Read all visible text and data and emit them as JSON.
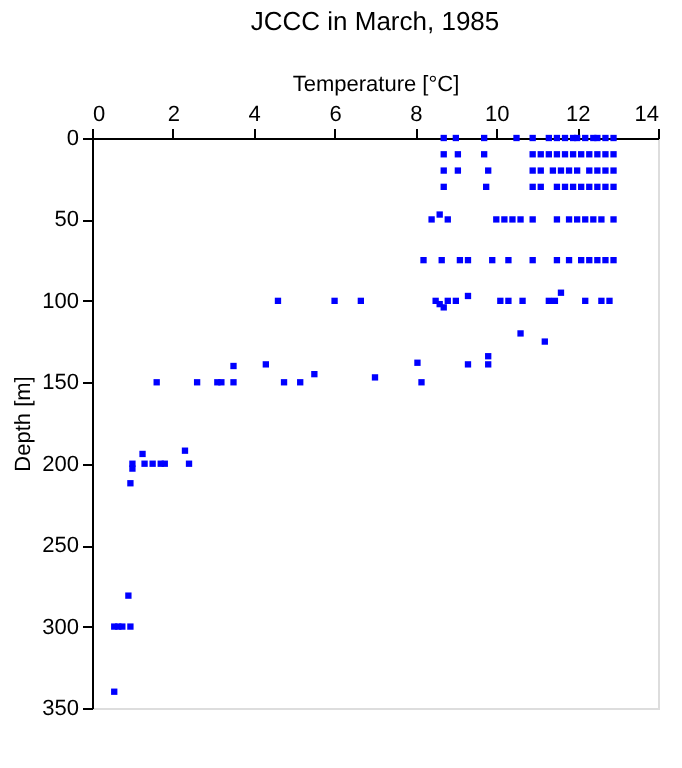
{
  "chart_data": {
    "type": "scatter",
    "title": "JCCC in March, 1985",
    "xlabel": "Temperature [°C]",
    "ylabel": "Depth [m]",
    "x": [
      8.7,
      9.0,
      9.7,
      10.5,
      10.9,
      11.3,
      11.5,
      11.7,
      11.9,
      12.0,
      12.2,
      12.4,
      12.5,
      12.7,
      12.9,
      8.7,
      9.05,
      9.7,
      10.9,
      11.1,
      11.3,
      11.5,
      11.7,
      11.9,
      12.1,
      12.3,
      12.5,
      12.7,
      12.9,
      8.7,
      9.05,
      9.8,
      10.9,
      11.1,
      11.4,
      11.6,
      11.8,
      12.0,
      12.3,
      12.5,
      12.7,
      12.9,
      8.7,
      9.75,
      10.9,
      11.1,
      11.5,
      11.7,
      11.9,
      12.1,
      12.3,
      12.5,
      12.7,
      12.9,
      8.4,
      8.6,
      8.8,
      10.0,
      10.2,
      10.4,
      10.6,
      10.9,
      11.5,
      11.8,
      12.0,
      12.2,
      12.4,
      12.6,
      12.9,
      8.2,
      8.65,
      9.1,
      9.3,
      9.9,
      10.3,
      10.9,
      11.5,
      11.8,
      12.1,
      12.3,
      12.5,
      12.7,
      12.9,
      4.6,
      6.0,
      6.65,
      8.5,
      8.6,
      8.7,
      8.8,
      9.0,
      9.3,
      10.1,
      10.3,
      10.65,
      11.3,
      11.45,
      11.6,
      12.2,
      12.6,
      12.8,
      10.6,
      11.2,
      1.6,
      2.6,
      3.1,
      3.2,
      3.5,
      3.5,
      4.3,
      4.75,
      5.15,
      5.5,
      7.0,
      8.05,
      8.15,
      9.3,
      9.8,
      9.8,
      1.0,
      1.25,
      1.3,
      1.5,
      1.7,
      1.8,
      1.0,
      0.95,
      2.3,
      2.4,
      0.9,
      0.55,
      0.65,
      0.75,
      0.95,
      0.55
    ],
    "values": [
      0,
      0,
      0,
      0,
      0,
      0,
      0,
      0,
      0,
      0,
      0,
      0,
      0,
      0,
      0,
      10,
      10,
      10,
      10,
      10,
      10,
      10,
      10,
      10,
      10,
      10,
      10,
      10,
      10,
      20,
      20,
      20,
      20,
      20,
      20,
      20,
      20,
      20,
      20,
      20,
      20,
      20,
      30,
      30,
      30,
      30,
      30,
      30,
      30,
      30,
      30,
      30,
      30,
      30,
      50,
      47,
      50,
      50,
      50,
      50,
      50,
      50,
      50,
      50,
      50,
      50,
      50,
      50,
      50,
      75,
      75,
      75,
      75,
      75,
      75,
      75,
      75,
      75,
      75,
      75,
      75,
      75,
      75,
      100,
      100,
      100,
      100,
      102,
      104,
      100,
      100,
      97,
      100,
      100,
      100,
      100,
      100,
      95,
      100,
      100,
      100,
      120,
      125,
      150,
      150,
      150,
      150,
      150,
      140,
      139,
      150,
      150,
      145,
      147,
      138,
      150,
      139,
      134,
      139,
      200,
      194,
      200,
      200,
      200,
      200,
      203,
      212,
      192,
      200,
      281,
      300,
      300,
      300,
      300,
      340
    ],
    "color": "#0000ff",
    "marker": "square",
    "xlim": [
      0,
      14
    ],
    "xticks": [
      0,
      2,
      4,
      6,
      8,
      10,
      12,
      14
    ],
    "ylim": [
      350,
      0
    ],
    "yticks": [
      0,
      50,
      100,
      150,
      200,
      250,
      300,
      350
    ],
    "grid": false
  }
}
